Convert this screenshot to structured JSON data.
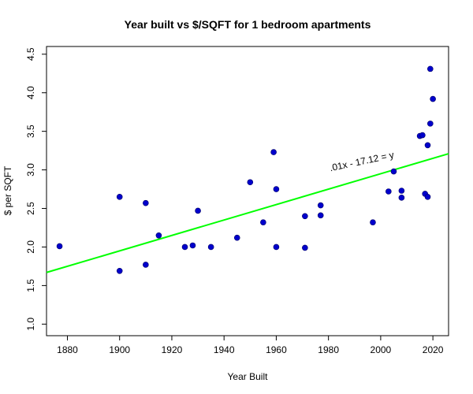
{
  "chart_data": {
    "type": "scatter",
    "title": "Year built vs $/SQFT for 1 bedroom apartments",
    "xlabel": "Year Built",
    "ylabel": "$ per SQFT",
    "xlim": [
      1872,
      2026
    ],
    "ylim": [
      0.85,
      4.6
    ],
    "xticks": [
      1880,
      1900,
      1920,
      1940,
      1960,
      1980,
      2000,
      2020
    ],
    "yticks": [
      1.0,
      1.5,
      2.0,
      2.5,
      3.0,
      3.5,
      4.0,
      4.5
    ],
    "xtick_labels": [
      "1880",
      "1900",
      "1920",
      "1940",
      "1960",
      "1980",
      "2000",
      "2020"
    ],
    "ytick_labels": [
      "1.0",
      "1.5",
      "2.0",
      "2.5",
      "3.0",
      "3.5",
      "4.0",
      "4.5"
    ],
    "grid": false,
    "point_color": "#0000CC",
    "line_color": "#00FF00",
    "trend_line": {
      "x": [
        1872,
        2026
      ],
      "y": [
        1.67,
        3.21
      ]
    },
    "annotation": {
      "text": ".01x - 17.12 = y",
      "x": 1993,
      "y": 3.07
    },
    "points": [
      {
        "x": 1877,
        "y": 2.01
      },
      {
        "x": 1900,
        "y": 2.65
      },
      {
        "x": 1900,
        "y": 1.69
      },
      {
        "x": 1910,
        "y": 2.57
      },
      {
        "x": 1910,
        "y": 1.77
      },
      {
        "x": 1915,
        "y": 2.15
      },
      {
        "x": 1925,
        "y": 2.0
      },
      {
        "x": 1928,
        "y": 2.02
      },
      {
        "x": 1930,
        "y": 2.47
      },
      {
        "x": 1935,
        "y": 2.0
      },
      {
        "x": 1945,
        "y": 2.12
      },
      {
        "x": 1950,
        "y": 2.84
      },
      {
        "x": 1955,
        "y": 2.32
      },
      {
        "x": 1959,
        "y": 3.23
      },
      {
        "x": 1960,
        "y": 2.75
      },
      {
        "x": 1960,
        "y": 2.0
      },
      {
        "x": 1971,
        "y": 2.4
      },
      {
        "x": 1971,
        "y": 1.99
      },
      {
        "x": 1977,
        "y": 2.54
      },
      {
        "x": 1977,
        "y": 2.41
      },
      {
        "x": 1997,
        "y": 2.32
      },
      {
        "x": 2003,
        "y": 2.72
      },
      {
        "x": 2005,
        "y": 2.98
      },
      {
        "x": 2008,
        "y": 2.73
      },
      {
        "x": 2008,
        "y": 2.64
      },
      {
        "x": 2015,
        "y": 3.44
      },
      {
        "x": 2016,
        "y": 3.45
      },
      {
        "x": 2017,
        "y": 2.69
      },
      {
        "x": 2018,
        "y": 3.32
      },
      {
        "x": 2018,
        "y": 2.65
      },
      {
        "x": 2019,
        "y": 4.31
      },
      {
        "x": 2019,
        "y": 3.6
      },
      {
        "x": 2020,
        "y": 3.92
      }
    ]
  }
}
